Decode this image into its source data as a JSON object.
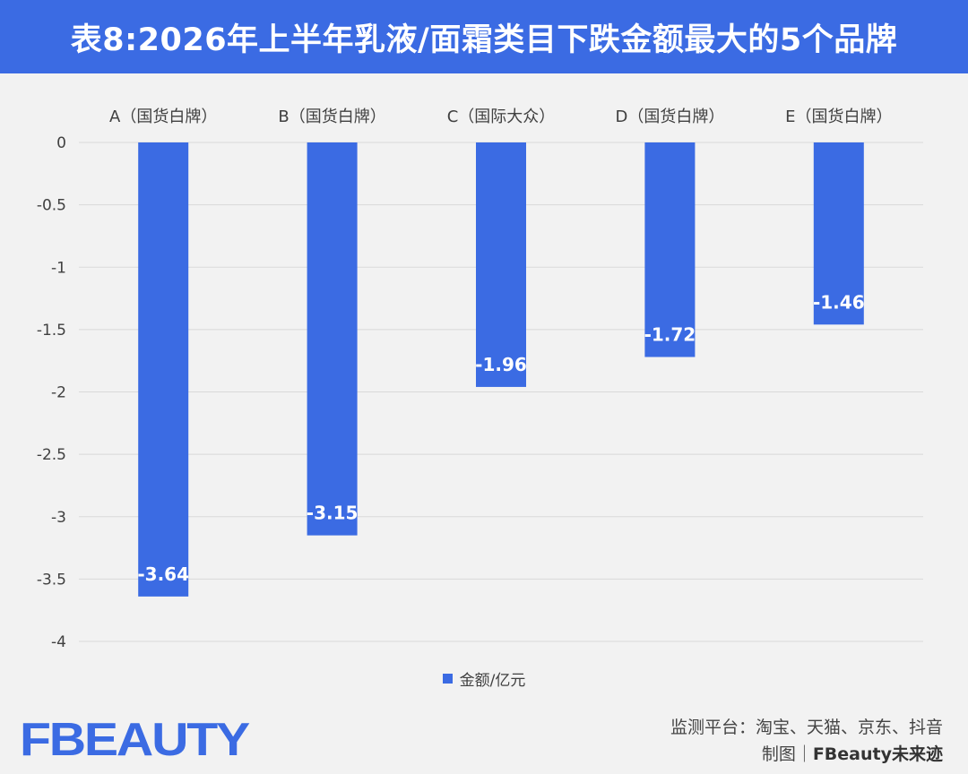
{
  "header": {
    "title": "表8:2026年上半年乳液/面霜类目下跌金额最大的5个品牌"
  },
  "colors": {
    "accent": "#3b6be3",
    "bar": "#3b6be3"
  },
  "chart_data": {
    "type": "bar",
    "categories": [
      "A（国货白牌）",
      "B（国货白牌）",
      "C（国际大众）",
      "D（国货白牌）",
      "E（国货白牌）"
    ],
    "series": [
      {
        "name": "金额/亿元",
        "values": [
          -3.64,
          -3.15,
          -1.96,
          -1.72,
          -1.46
        ],
        "labels": [
          "-3.64",
          "-3.15",
          "-1.96",
          "-1.72",
          "-1.46"
        ]
      }
    ],
    "y_ticks": [
      "0",
      "-0.5",
      "-1",
      "-1.5",
      "-2",
      "-2.5",
      "-3",
      "-3.5",
      "-4"
    ],
    "ylim": [
      -4,
      0
    ],
    "grid": true,
    "category_axis_position": "top",
    "legend_position": "bottom-center"
  },
  "footer": {
    "logo_text": "FBEAUTY",
    "source_line": "监测平台：淘宝、天猫、京东、抖音",
    "credit_prefix": "制图｜",
    "credit_brand": "FBeauty未来迹"
  }
}
